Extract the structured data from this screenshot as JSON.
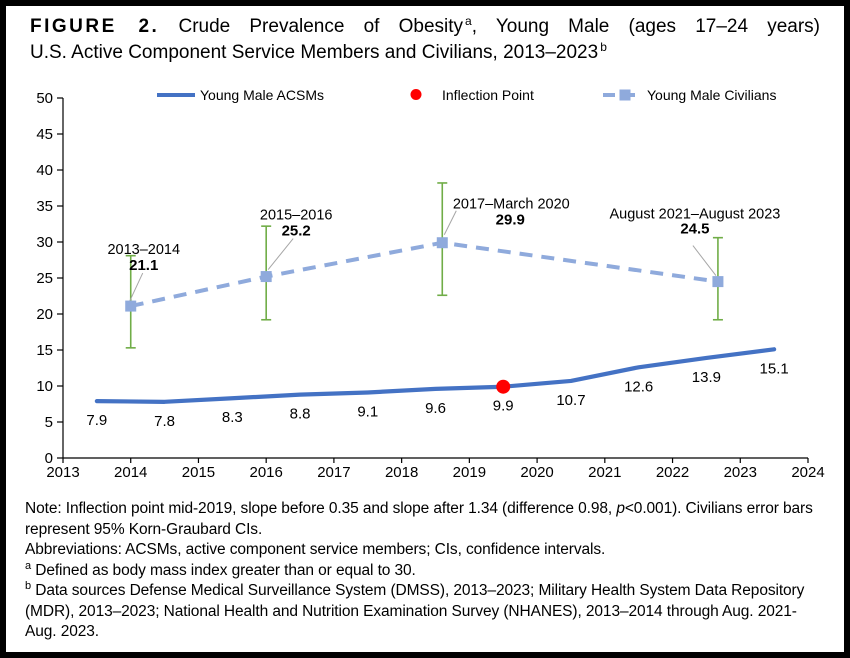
{
  "title": {
    "figure_label": "FIGURE 2.",
    "line1_pre": "Crude Prevalence of Obesity",
    "sup_a": "a",
    "line1_post": ", Young Male (ages 17–24 years)",
    "line2": "U.S. Active Component Service Members and Civilians, 2013–2023",
    "sup_b": "b"
  },
  "legend": [
    {
      "label": "Young Male ACSMs",
      "marker": "solid-line",
      "color": "#4472C4"
    },
    {
      "label": "Inflection Point",
      "marker": "dot",
      "color": "#FF0000"
    },
    {
      "label": "Young Male Civilians",
      "marker": "dashed-line-square",
      "color": "#8FAADC"
    }
  ],
  "chart_data": {
    "type": "line",
    "grid": false,
    "x_axis": {
      "min": 2013,
      "max": 2024,
      "ticks": [
        2013,
        2014,
        2015,
        2016,
        2017,
        2018,
        2019,
        2020,
        2021,
        2022,
        2023,
        2024
      ]
    },
    "y_axis": {
      "min": 0,
      "max": 50,
      "tick_step": 5
    },
    "series": [
      {
        "name": "Young Male ACSMs",
        "style": "solid",
        "color": "#4472C4",
        "x": [
          2013.5,
          2014.5,
          2015.5,
          2016.5,
          2017.5,
          2018.5,
          2019.5,
          2020.5,
          2021.5,
          2022.5,
          2023.5
        ],
        "values": [
          7.9,
          7.8,
          8.3,
          8.8,
          9.1,
          9.6,
          9.9,
          10.7,
          12.6,
          13.9,
          15.1
        ],
        "value_labels": [
          "7.9",
          "7.8",
          "8.3",
          "8.8",
          "9.1",
          "9.6",
          "9.9",
          "10.7",
          "12.6",
          "13.9",
          "15.1"
        ]
      },
      {
        "name": "Young Male Civilians",
        "style": "dashed",
        "color": "#8FAADC",
        "marker": "square",
        "error_bar_color": "#70AD47",
        "points": [
          {
            "x": 2014.0,
            "value": 21.1,
            "ci_low": 15.3,
            "ci_high": 28.1,
            "period_label": "2013–2014",
            "value_label": "21.1"
          },
          {
            "x": 2016.0,
            "value": 25.2,
            "ci_low": 19.2,
            "ci_high": 32.2,
            "period_label": "2015–2016",
            "value_label": "25.2"
          },
          {
            "x": 2018.6,
            "value": 29.9,
            "ci_low": 22.6,
            "ci_high": 38.2,
            "period_label": "2017–March 2020",
            "value_label": "29.9"
          },
          {
            "x": 2022.67,
            "value": 24.5,
            "ci_low": 19.2,
            "ci_high": 30.6,
            "period_label": "August 2021–August 2023",
            "value_label": "24.5"
          }
        ]
      }
    ],
    "inflection_point": {
      "x": 2019.5,
      "value": 9.9,
      "color": "#FF0000"
    },
    "leader_line_color": "#A6A6A6",
    "axis_color": "#000000"
  },
  "notes": {
    "note1_pre": "Note: Inflection point mid-2019, slope before 0.35 and slope after 1.34 (difference 0.98, ",
    "note1_italic": "p",
    "note1_post": "<0.001). Civilians error bars represent 95% Korn-Graubard CIs.",
    "abbreviations": "Abbreviations: ACSMs, active component service members; CIs, confidence intervals.",
    "footnote_a_sup": "a",
    "footnote_a": " Defined as body mass index greater than or equal to 30.",
    "footnote_b_sup": "b",
    "footnote_b": " Data sources Defense Medical Surveillance System (DMSS), 2013–2023; Military Health System Data Repository (MDR), 2013–2023; National Health and Nutrition Examination Survey (NHANES), 2013–2014 through Aug. 2021-Aug. 2023."
  }
}
